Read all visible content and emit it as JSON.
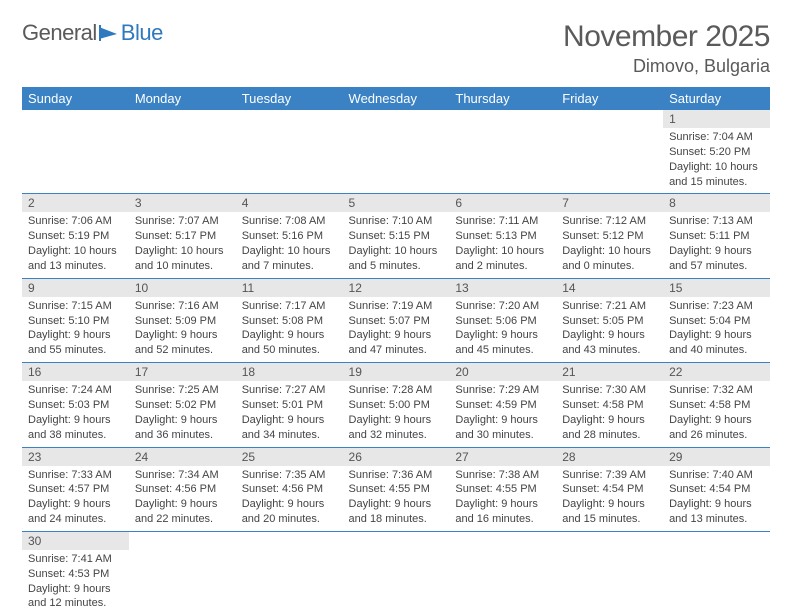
{
  "logo": {
    "text1": "General",
    "text2": "Blue"
  },
  "title": "November 2025",
  "subtitle": "Dimovo, Bulgaria",
  "colors": {
    "header_bg": "#3a82c4",
    "header_text": "#ffffff",
    "daynum_bg": "#e7e7e7",
    "border": "#3a82c4",
    "logo_gray": "#5a5a5a",
    "logo_blue": "#2f7abf"
  },
  "days": [
    "Sunday",
    "Monday",
    "Tuesday",
    "Wednesday",
    "Thursday",
    "Friday",
    "Saturday"
  ],
  "weeks": [
    [
      null,
      null,
      null,
      null,
      null,
      null,
      {
        "n": "1",
        "sr": "Sunrise: 7:04 AM",
        "ss": "Sunset: 5:20 PM",
        "d1": "Daylight: 10 hours",
        "d2": "and 15 minutes."
      }
    ],
    [
      {
        "n": "2",
        "sr": "Sunrise: 7:06 AM",
        "ss": "Sunset: 5:19 PM",
        "d1": "Daylight: 10 hours",
        "d2": "and 13 minutes."
      },
      {
        "n": "3",
        "sr": "Sunrise: 7:07 AM",
        "ss": "Sunset: 5:17 PM",
        "d1": "Daylight: 10 hours",
        "d2": "and 10 minutes."
      },
      {
        "n": "4",
        "sr": "Sunrise: 7:08 AM",
        "ss": "Sunset: 5:16 PM",
        "d1": "Daylight: 10 hours",
        "d2": "and 7 minutes."
      },
      {
        "n": "5",
        "sr": "Sunrise: 7:10 AM",
        "ss": "Sunset: 5:15 PM",
        "d1": "Daylight: 10 hours",
        "d2": "and 5 minutes."
      },
      {
        "n": "6",
        "sr": "Sunrise: 7:11 AM",
        "ss": "Sunset: 5:13 PM",
        "d1": "Daylight: 10 hours",
        "d2": "and 2 minutes."
      },
      {
        "n": "7",
        "sr": "Sunrise: 7:12 AM",
        "ss": "Sunset: 5:12 PM",
        "d1": "Daylight: 10 hours",
        "d2": "and 0 minutes."
      },
      {
        "n": "8",
        "sr": "Sunrise: 7:13 AM",
        "ss": "Sunset: 5:11 PM",
        "d1": "Daylight: 9 hours",
        "d2": "and 57 minutes."
      }
    ],
    [
      {
        "n": "9",
        "sr": "Sunrise: 7:15 AM",
        "ss": "Sunset: 5:10 PM",
        "d1": "Daylight: 9 hours",
        "d2": "and 55 minutes."
      },
      {
        "n": "10",
        "sr": "Sunrise: 7:16 AM",
        "ss": "Sunset: 5:09 PM",
        "d1": "Daylight: 9 hours",
        "d2": "and 52 minutes."
      },
      {
        "n": "11",
        "sr": "Sunrise: 7:17 AM",
        "ss": "Sunset: 5:08 PM",
        "d1": "Daylight: 9 hours",
        "d2": "and 50 minutes."
      },
      {
        "n": "12",
        "sr": "Sunrise: 7:19 AM",
        "ss": "Sunset: 5:07 PM",
        "d1": "Daylight: 9 hours",
        "d2": "and 47 minutes."
      },
      {
        "n": "13",
        "sr": "Sunrise: 7:20 AM",
        "ss": "Sunset: 5:06 PM",
        "d1": "Daylight: 9 hours",
        "d2": "and 45 minutes."
      },
      {
        "n": "14",
        "sr": "Sunrise: 7:21 AM",
        "ss": "Sunset: 5:05 PM",
        "d1": "Daylight: 9 hours",
        "d2": "and 43 minutes."
      },
      {
        "n": "15",
        "sr": "Sunrise: 7:23 AM",
        "ss": "Sunset: 5:04 PM",
        "d1": "Daylight: 9 hours",
        "d2": "and 40 minutes."
      }
    ],
    [
      {
        "n": "16",
        "sr": "Sunrise: 7:24 AM",
        "ss": "Sunset: 5:03 PM",
        "d1": "Daylight: 9 hours",
        "d2": "and 38 minutes."
      },
      {
        "n": "17",
        "sr": "Sunrise: 7:25 AM",
        "ss": "Sunset: 5:02 PM",
        "d1": "Daylight: 9 hours",
        "d2": "and 36 minutes."
      },
      {
        "n": "18",
        "sr": "Sunrise: 7:27 AM",
        "ss": "Sunset: 5:01 PM",
        "d1": "Daylight: 9 hours",
        "d2": "and 34 minutes."
      },
      {
        "n": "19",
        "sr": "Sunrise: 7:28 AM",
        "ss": "Sunset: 5:00 PM",
        "d1": "Daylight: 9 hours",
        "d2": "and 32 minutes."
      },
      {
        "n": "20",
        "sr": "Sunrise: 7:29 AM",
        "ss": "Sunset: 4:59 PM",
        "d1": "Daylight: 9 hours",
        "d2": "and 30 minutes."
      },
      {
        "n": "21",
        "sr": "Sunrise: 7:30 AM",
        "ss": "Sunset: 4:58 PM",
        "d1": "Daylight: 9 hours",
        "d2": "and 28 minutes."
      },
      {
        "n": "22",
        "sr": "Sunrise: 7:32 AM",
        "ss": "Sunset: 4:58 PM",
        "d1": "Daylight: 9 hours",
        "d2": "and 26 minutes."
      }
    ],
    [
      {
        "n": "23",
        "sr": "Sunrise: 7:33 AM",
        "ss": "Sunset: 4:57 PM",
        "d1": "Daylight: 9 hours",
        "d2": "and 24 minutes."
      },
      {
        "n": "24",
        "sr": "Sunrise: 7:34 AM",
        "ss": "Sunset: 4:56 PM",
        "d1": "Daylight: 9 hours",
        "d2": "and 22 minutes."
      },
      {
        "n": "25",
        "sr": "Sunrise: 7:35 AM",
        "ss": "Sunset: 4:56 PM",
        "d1": "Daylight: 9 hours",
        "d2": "and 20 minutes."
      },
      {
        "n": "26",
        "sr": "Sunrise: 7:36 AM",
        "ss": "Sunset: 4:55 PM",
        "d1": "Daylight: 9 hours",
        "d2": "and 18 minutes."
      },
      {
        "n": "27",
        "sr": "Sunrise: 7:38 AM",
        "ss": "Sunset: 4:55 PM",
        "d1": "Daylight: 9 hours",
        "d2": "and 16 minutes."
      },
      {
        "n": "28",
        "sr": "Sunrise: 7:39 AM",
        "ss": "Sunset: 4:54 PM",
        "d1": "Daylight: 9 hours",
        "d2": "and 15 minutes."
      },
      {
        "n": "29",
        "sr": "Sunrise: 7:40 AM",
        "ss": "Sunset: 4:54 PM",
        "d1": "Daylight: 9 hours",
        "d2": "and 13 minutes."
      }
    ],
    [
      {
        "n": "30",
        "sr": "Sunrise: 7:41 AM",
        "ss": "Sunset: 4:53 PM",
        "d1": "Daylight: 9 hours",
        "d2": "and 12 minutes."
      },
      null,
      null,
      null,
      null,
      null,
      null
    ]
  ]
}
